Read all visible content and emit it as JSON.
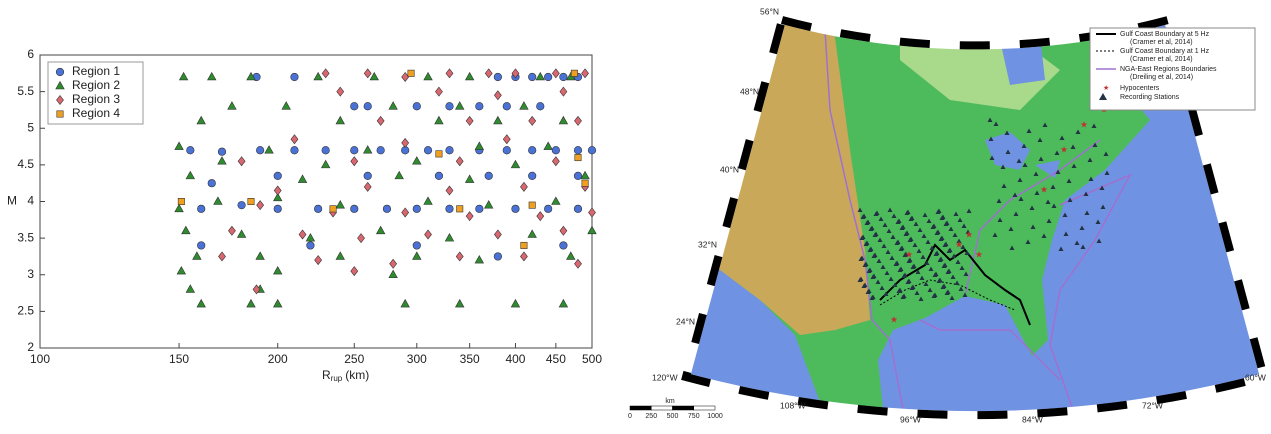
{
  "chart_data": {
    "type": "scatter",
    "xscale": "log",
    "xlim": [
      100,
      500
    ],
    "ylim": [
      2,
      6
    ],
    "xticks": [
      100,
      150,
      200,
      250,
      300,
      350,
      400,
      450,
      500
    ],
    "yticks": [
      2,
      2.5,
      3,
      3.5,
      4,
      4.5,
      5,
      5.5,
      6
    ],
    "xlabel": "R",
    "xlabel_sub": "rup",
    "xlabel_unit": "(km)",
    "ylabel": "M",
    "legend": "upper left",
    "series": [
      {
        "name": "Region 1",
        "color": "#4a72d6",
        "marker": "circle",
        "x": [
          188,
          210,
          380,
          400,
          420,
          440,
          460,
          480,
          250,
          260,
          300,
          330,
          360,
          390,
          430,
          155,
          170,
          190,
          210,
          230,
          250,
          270,
          290,
          310,
          330,
          360,
          390,
          420,
          450,
          480,
          500,
          165,
          200,
          260,
          320,
          370,
          420,
          480,
          160,
          180,
          200,
          225,
          250,
          275,
          300,
          330,
          360,
          400,
          440,
          480,
          160,
          220,
          300,
          380,
          460
        ],
        "values": [
          5.7,
          5.7,
          5.7,
          5.7,
          5.7,
          5.7,
          5.7,
          5.7,
          5.3,
          5.3,
          5.3,
          5.3,
          5.3,
          5.3,
          5.3,
          4.7,
          4.68,
          4.7,
          4.7,
          4.7,
          4.7,
          4.7,
          4.7,
          4.7,
          4.7,
          4.7,
          4.7,
          4.7,
          4.7,
          4.7,
          4.7,
          4.25,
          4.35,
          4.35,
          4.35,
          4.35,
          4.35,
          4.35,
          3.9,
          3.95,
          3.9,
          3.9,
          3.9,
          3.9,
          3.9,
          3.9,
          3.9,
          3.9,
          3.9,
          3.9,
          3.4,
          3.4,
          3.4,
          3.25,
          3.4
        ]
      },
      {
        "name": "Region 2",
        "color": "#2e8b2e",
        "marker": "triangle",
        "x": [
          152,
          165,
          185,
          225,
          265,
          310,
          350,
          430,
          470,
          175,
          205,
          280,
          340,
          410,
          160,
          240,
          320,
          380,
          460,
          150,
          195,
          260,
          360,
          440,
          170,
          230,
          300,
          400,
          155,
          215,
          285,
          350,
          490,
          150,
          168,
          200,
          240,
          310,
          370,
          450,
          153,
          180,
          220,
          270,
          330,
          420,
          500,
          158,
          190,
          240,
          300,
          360,
          470,
          151,
          200,
          280,
          155,
          190,
          160,
          185,
          200,
          290,
          340,
          400,
          460
        ],
        "values": [
          5.7,
          5.7,
          5.7,
          5.7,
          5.7,
          5.7,
          5.7,
          5.7,
          5.7,
          5.3,
          5.3,
          5.3,
          5.3,
          5.3,
          5.1,
          5.1,
          5.1,
          5.1,
          5.1,
          4.75,
          4.7,
          4.7,
          4.75,
          4.75,
          4.55,
          4.5,
          4.55,
          4.5,
          4.35,
          4.3,
          4.35,
          4.3,
          4.35,
          3.9,
          4.0,
          4.05,
          3.95,
          4.0,
          3.95,
          4.0,
          3.6,
          3.55,
          3.5,
          3.6,
          3.5,
          3.55,
          3.6,
          3.25,
          3.25,
          3.25,
          3.25,
          3.2,
          3.25,
          3.05,
          3.05,
          3.0,
          2.8,
          2.8,
          2.6,
          2.6,
          2.6,
          2.6,
          2.6,
          2.6,
          2.6
        ]
      },
      {
        "name": "Region 3",
        "color": "#d9676f",
        "marker": "diamond",
        "x": [
          230,
          260,
          290,
          330,
          370,
          400,
          450,
          490,
          240,
          320,
          380,
          460,
          270,
          350,
          420,
          480,
          210,
          290,
          390,
          180,
          250,
          340,
          450,
          200,
          260,
          330,
          410,
          490,
          190,
          235,
          290,
          350,
          430,
          500,
          175,
          215,
          255,
          310,
          380,
          460,
          170,
          225,
          280,
          340,
          410,
          480,
          188,
          250
        ],
        "values": [
          5.75,
          5.75,
          5.7,
          5.75,
          5.75,
          5.75,
          5.75,
          5.75,
          5.5,
          5.5,
          5.45,
          5.5,
          5.1,
          5.1,
          5.1,
          5.1,
          4.85,
          4.8,
          4.85,
          4.55,
          4.55,
          4.55,
          4.55,
          4.15,
          4.2,
          4.15,
          4.2,
          4.2,
          3.95,
          3.85,
          3.85,
          3.8,
          3.8,
          3.85,
          3.6,
          3.55,
          3.5,
          3.55,
          3.55,
          3.6,
          3.25,
          3.2,
          3.15,
          3.25,
          3.25,
          3.15,
          2.8,
          3.05
        ]
      },
      {
        "name": "Region 4",
        "color": "#f0a020",
        "marker": "square",
        "x": [
          151,
          185,
          235,
          295,
          340,
          420,
          475,
          480,
          490,
          410,
          320
        ],
        "values": [
          4.0,
          4.0,
          3.9,
          5.75,
          3.9,
          3.95,
          5.75,
          4.6,
          4.25,
          3.4,
          4.65
        ]
      }
    ]
  },
  "map": {
    "lat_labels": [
      "56°N",
      "48°N",
      "40°N",
      "32°N",
      "24°N"
    ],
    "lon_labels": [
      "120°W",
      "108°W",
      "96°W",
      "84°W",
      "72°W",
      "60°W"
    ],
    "legend": [
      [
        "Gulf Coast Boundary at 5 Hz",
        "(Cramer et al, 2014)"
      ],
      [
        "Gulf Coast Boundary at 1 Hz",
        "(Cramer et al, 2014)"
      ],
      [
        "NGA-East Regions Boundaries",
        "(Dreiling et al, 2014)"
      ],
      [
        "Hypocenters"
      ],
      [
        "Recording Stations"
      ]
    ],
    "scale_bar": {
      "unit": "km",
      "ticks": [
        0,
        250,
        500,
        750,
        1000
      ]
    }
  }
}
